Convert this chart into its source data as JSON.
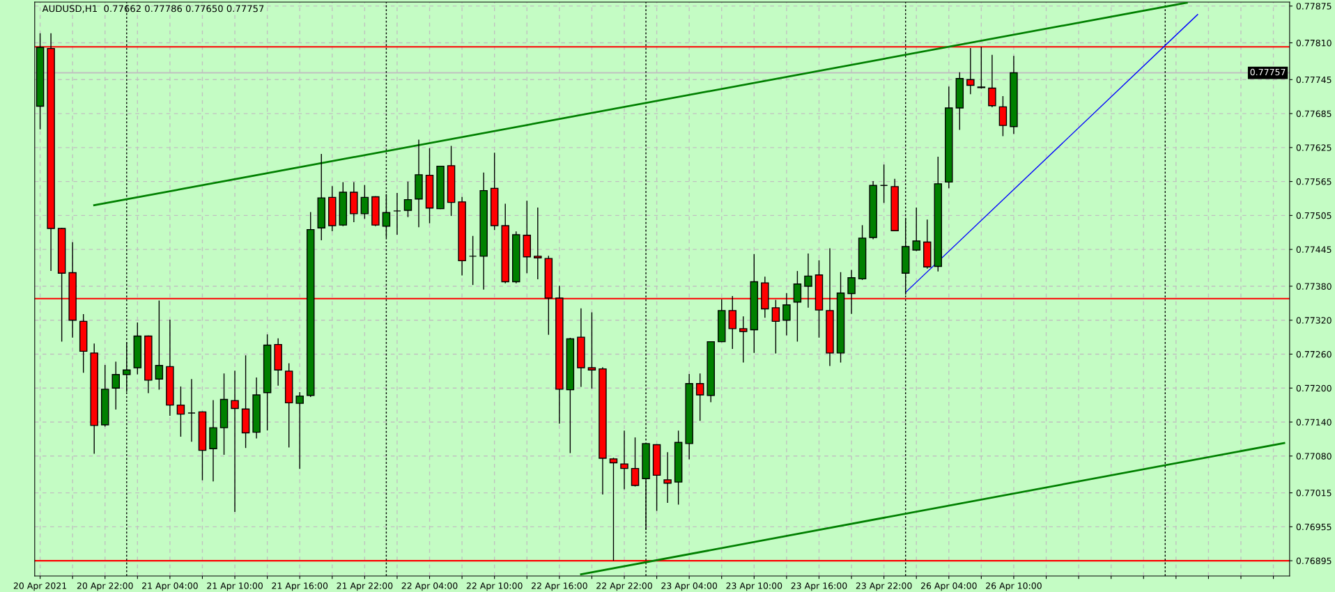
{
  "chart_data": {
    "type": "candlestick",
    "title": "AUDUSD,H1  0.77662 0.77786 0.77650 0.77757",
    "categories": [
      "20 Apr 2021",
      null,
      null,
      null,
      null,
      null,
      "20 Apr 22:00",
      null,
      null,
      null,
      null,
      null,
      "21 Apr 04:00",
      null,
      null,
      null,
      null,
      null,
      "21 Apr 10:00",
      null,
      null,
      null,
      null,
      null,
      "21 Apr 16:00",
      null,
      null,
      null,
      null,
      null,
      "21 Apr 22:00",
      null,
      null,
      null,
      null,
      null,
      "22 Apr 04:00",
      null,
      null,
      null,
      null,
      null,
      "22 Apr 10:00",
      null,
      null,
      null,
      null,
      null,
      "22 Apr 16:00",
      null,
      null,
      null,
      null,
      null,
      "22 Apr 22:00",
      null,
      null,
      null,
      null,
      null,
      "23 Apr 04:00",
      null,
      null,
      null,
      null,
      null,
      "23 Apr 10:00",
      null,
      null,
      null,
      null,
      null,
      "23 Apr 16:00",
      null,
      null,
      null,
      null,
      null,
      "23 Apr 22:00",
      null,
      null,
      null,
      null,
      null,
      "26 Apr 04:00",
      null,
      null,
      null,
      null,
      null,
      "26 Apr 10:00",
      null,
      null,
      null,
      null,
      null,
      null,
      null,
      null,
      null,
      null,
      null,
      null,
      null,
      null,
      null,
      null,
      null,
      null,
      null,
      null,
      null,
      null,
      null,
      null,
      null
    ],
    "ohlc": [
      [
        0.77698,
        0.77826,
        0.77658,
        0.77802
      ],
      [
        0.778,
        0.77826,
        0.77408,
        0.77482
      ],
      [
        0.77482,
        0.77482,
        0.77283,
        0.77403
      ],
      [
        0.77404,
        0.77457,
        0.7729,
        0.7732
      ],
      [
        0.77318,
        0.7733,
        0.77228,
        0.77265
      ],
      [
        0.77262,
        0.77278,
        0.77085,
        0.77134
      ],
      [
        0.77135,
        0.7724,
        0.77133,
        0.77198
      ],
      [
        0.772,
        0.77246,
        0.77163,
        0.77224
      ],
      [
        0.77224,
        0.7728,
        0.77194,
        0.77232
      ],
      [
        0.77236,
        0.77315,
        0.77225,
        0.77292
      ],
      [
        0.77292,
        0.77292,
        0.77192,
        0.77214
      ],
      [
        0.77216,
        0.77354,
        0.77198,
        0.7724
      ],
      [
        0.77238,
        0.7732,
        0.77152,
        0.7717
      ],
      [
        0.7717,
        0.77202,
        0.77115,
        0.77154
      ],
      [
        0.77156,
        0.77215,
        0.77106,
        0.77156
      ],
      [
        0.77158,
        0.77158,
        0.77038,
        0.7709
      ],
      [
        0.77093,
        0.77178,
        0.77036,
        0.7713
      ],
      [
        0.7713,
        0.77225,
        0.77083,
        0.7718
      ],
      [
        0.77178,
        0.7723,
        0.76982,
        0.77164
      ],
      [
        0.77163,
        0.77257,
        0.77095,
        0.77121
      ],
      [
        0.77122,
        0.77218,
        0.77112,
        0.77188
      ],
      [
        0.77192,
        0.77294,
        0.77126,
        0.77276
      ],
      [
        0.77277,
        0.77287,
        0.77205,
        0.77232
      ],
      [
        0.7723,
        0.77243,
        0.77096,
        0.77174
      ],
      [
        0.77173,
        0.77192,
        0.77058,
        0.77186
      ],
      [
        0.77187,
        0.7751,
        0.77185,
        0.7748
      ],
      [
        0.77483,
        0.77613,
        0.77462,
        0.77536
      ],
      [
        0.77537,
        0.77556,
        0.77478,
        0.77487
      ],
      [
        0.77488,
        0.77563,
        0.77487,
        0.77546
      ],
      [
        0.77546,
        0.77563,
        0.77494,
        0.77508
      ],
      [
        0.77508,
        0.77558,
        0.775,
        0.77537
      ],
      [
        0.77538,
        0.77538,
        0.77487,
        0.77488
      ],
      [
        0.77486,
        0.77542,
        0.77467,
        0.7751
      ],
      [
        0.77513,
        0.77544,
        0.77472,
        0.77513
      ],
      [
        0.77514,
        0.77564,
        0.77503,
        0.77533
      ],
      [
        0.77534,
        0.77638,
        0.77485,
        0.77577
      ],
      [
        0.77576,
        0.77623,
        0.77492,
        0.77518
      ],
      [
        0.77517,
        0.77592,
        0.77517,
        0.77592
      ],
      [
        0.77593,
        0.77627,
        0.77505,
        0.77528
      ],
      [
        0.77529,
        0.77537,
        0.774,
        0.77425
      ],
      [
        0.77433,
        0.77468,
        0.77383,
        0.77433
      ],
      [
        0.77433,
        0.7758,
        0.77375,
        0.77549
      ],
      [
        0.77553,
        0.77615,
        0.7748,
        0.77487
      ],
      [
        0.77487,
        0.77525,
        0.77386,
        0.77388
      ],
      [
        0.77388,
        0.77476,
        0.77386,
        0.77471
      ],
      [
        0.7747,
        0.7753,
        0.77404,
        0.77432
      ],
      [
        0.77433,
        0.77518,
        0.77393,
        0.7743
      ],
      [
        0.77429,
        0.77433,
        0.77295,
        0.77359
      ],
      [
        0.77359,
        0.7738,
        0.77138,
        0.77198
      ],
      [
        0.77197,
        0.77288,
        0.77086,
        0.77287
      ],
      [
        0.7729,
        0.7734,
        0.77203,
        0.77236
      ],
      [
        0.77236,
        0.77333,
        0.772,
        0.77232
      ],
      [
        0.77234,
        0.77236,
        0.77013,
        0.77076
      ],
      [
        0.77075,
        0.77076,
        0.76896,
        0.77068
      ],
      [
        0.77066,
        0.77124,
        0.77022,
        0.77058
      ],
      [
        0.77058,
        0.77112,
        0.77027,
        0.77028
      ],
      [
        0.7704,
        0.77102,
        0.7695,
        0.77102
      ],
      [
        0.771,
        0.771,
        0.76984,
        0.77046
      ],
      [
        0.77038,
        0.77086,
        0.76998,
        0.77032
      ],
      [
        0.77034,
        0.77124,
        0.76995,
        0.77104
      ],
      [
        0.77102,
        0.77224,
        0.77075,
        0.77208
      ],
      [
        0.77208,
        0.77225,
        0.77143,
        0.77188
      ],
      [
        0.77187,
        0.77282,
        0.77176,
        0.77282
      ],
      [
        0.77282,
        0.77356,
        0.77282,
        0.77337
      ],
      [
        0.77337,
        0.77362,
        0.7727,
        0.77305
      ],
      [
        0.77305,
        0.77326,
        0.77246,
        0.773
      ],
      [
        0.77303,
        0.77436,
        0.77263,
        0.77388
      ],
      [
        0.77386,
        0.77396,
        0.77325,
        0.7734
      ],
      [
        0.77342,
        0.77355,
        0.77262,
        0.77318
      ],
      [
        0.7732,
        0.77367,
        0.77294,
        0.77347
      ],
      [
        0.77352,
        0.77406,
        0.77283,
        0.77384
      ],
      [
        0.7738,
        0.77437,
        0.77343,
        0.77398
      ],
      [
        0.774,
        0.77425,
        0.7729,
        0.77338
      ],
      [
        0.77337,
        0.77446,
        0.7724,
        0.77262
      ],
      [
        0.77262,
        0.77404,
        0.77246,
        0.77368
      ],
      [
        0.77367,
        0.77408,
        0.77332,
        0.77395
      ],
      [
        0.77393,
        0.77487,
        0.77392,
        0.77465
      ],
      [
        0.77466,
        0.77565,
        0.77464,
        0.77558
      ],
      [
        0.77558,
        0.77594,
        0.77528,
        0.77558
      ],
      [
        0.77556,
        0.77569,
        0.77478,
        0.77478
      ],
      [
        0.77403,
        0.775,
        0.77366,
        0.7745
      ],
      [
        0.77444,
        0.77518,
        0.77443,
        0.7746
      ],
      [
        0.77458,
        0.77497,
        0.77412,
        0.77414
      ],
      [
        0.77415,
        0.77608,
        0.77407,
        0.77561
      ],
      [
        0.77564,
        0.77732,
        0.77554,
        0.77695
      ],
      [
        0.77695,
        0.77757,
        0.77657,
        0.77747
      ],
      [
        0.77745,
        0.778,
        0.7772,
        0.77735
      ],
      [
        0.77732,
        0.77802,
        0.7773,
        0.77731
      ],
      [
        0.7773,
        0.77788,
        0.77697,
        0.77699
      ],
      [
        0.77697,
        0.77715,
        0.77646,
        0.77664
      ],
      [
        0.77662,
        0.77786,
        0.7765,
        0.77757
      ],
      null,
      null,
      null,
      null,
      null,
      null,
      null,
      null,
      null,
      null,
      null,
      null,
      null,
      null,
      null,
      null,
      null,
      null,
      null,
      null,
      null,
      null,
      null,
      null,
      null
    ],
    "colors": [
      "#008000",
      "#ff0000",
      "#ff0000",
      "#ff0000",
      "#ff0000",
      "#ff0000",
      "#008000",
      "#008000",
      "#008000",
      "#008000",
      "#ff0000",
      "#008000",
      "#ff0000",
      "#ff0000",
      "#000000",
      "#ff0000",
      "#008000",
      "#008000",
      "#ff0000",
      "#ff0000",
      "#008000",
      "#008000",
      "#ff0000",
      "#ff0000",
      "#008000",
      "#008000",
      "#008000",
      "#ff0000",
      "#008000",
      "#ff0000",
      "#008000",
      "#ff0000",
      "#008000",
      "#000000",
      "#008000",
      "#008000",
      "#ff0000",
      "#008000",
      "#ff0000",
      "#ff0000",
      "#000000",
      "#008000",
      "#ff0000",
      "#ff0000",
      "#008000",
      "#ff0000",
      "#ff0000",
      "#ff0000",
      "#ff0000",
      "#008000",
      "#ff0000",
      "#ff0000",
      "#ff0000",
      "#ff0000",
      "#ff0000",
      "#ff0000",
      "#008000",
      "#ff0000",
      "#ff0000",
      "#008000",
      "#008000",
      "#ff0000",
      "#008000",
      "#008000",
      "#ff0000",
      "#ff0000",
      "#008000",
      "#ff0000",
      "#ff0000",
      "#008000",
      "#008000",
      "#008000",
      "#ff0000",
      "#ff0000",
      "#008000",
      "#008000",
      "#008000",
      "#008000",
      "#000000",
      "#ff0000",
      "#008000",
      "#008000",
      "#ff0000",
      "#008000",
      "#008000",
      "#008000",
      "#ff0000",
      "#ff0000",
      "#ff0000",
      "#ff0000",
      "#008000",
      null,
      null,
      null,
      null,
      null,
      null,
      null,
      null,
      null,
      null,
      null,
      null,
      null,
      null,
      null,
      null,
      null,
      null,
      null,
      null,
      null,
      null,
      null,
      null,
      null
    ],
    "series": [
      {
        "type": "line",
        "color": "#008000",
        "values": [
          null,
          null,
          null,
          null,
          null,
          0.77523,
          null,
          null,
          null,
          null,
          null,
          null,
          null,
          null,
          null,
          null,
          null,
          null,
          null,
          null,
          null,
          null,
          null,
          null,
          null,
          null,
          null,
          null,
          null,
          null,
          null,
          null,
          null,
          null,
          null,
          null,
          null,
          null,
          null,
          null,
          null,
          null,
          null,
          null,
          null,
          null,
          null,
          null,
          null,
          null,
          null,
          null,
          null,
          null,
          null,
          null,
          null,
          null,
          null,
          null,
          null,
          null,
          null,
          null,
          null,
          null,
          null,
          null,
          null,
          null,
          null,
          null,
          null,
          null,
          null,
          null,
          null,
          null,
          null,
          null,
          null,
          null,
          null,
          null,
          null,
          null,
          null,
          null,
          null,
          null,
          null,
          null,
          null,
          null,
          null,
          null,
          null,
          null,
          null,
          null,
          null,
          null,
          null,
          null,
          null,
          null,
          0.77881,
          null,
          null,
          null,
          null,
          null,
          null,
          null,
          null,
          null
        ]
      },
      {
        "type": "line",
        "color": "#008000",
        "values": [
          null,
          null,
          null,
          null,
          null,
          null,
          null,
          null,
          null,
          null,
          null,
          null,
          null,
          null,
          null,
          null,
          null,
          null,
          null,
          null,
          null,
          null,
          null,
          null,
          null,
          null,
          null,
          null,
          null,
          null,
          null,
          null,
          null,
          null,
          null,
          null,
          null,
          null,
          null,
          null,
          null,
          null,
          null,
          null,
          null,
          null,
          null,
          null,
          null,
          null,
          0.76871,
          null,
          null,
          null,
          null,
          null,
          null,
          null,
          null,
          null,
          null,
          null,
          null,
          null,
          null,
          null,
          null,
          null,
          null,
          null,
          null,
          null,
          null,
          null,
          null,
          null,
          null,
          null,
          null,
          null,
          null,
          null,
          null,
          null,
          null,
          null,
          null,
          null,
          null,
          null,
          null,
          null,
          null,
          null,
          null,
          null,
          null,
          null,
          null,
          null,
          null,
          null,
          null,
          null,
          null,
          null,
          null,
          null,
          null,
          null,
          null,
          null,
          null,
          null,
          null,
          0.77103
        ]
      },
      {
        "type": "line",
        "color": "#0000ff",
        "values": [
          null,
          null,
          null,
          null,
          null,
          null,
          null,
          null,
          null,
          null,
          null,
          null,
          null,
          null,
          null,
          null,
          null,
          null,
          null,
          null,
          null,
          null,
          null,
          null,
          null,
          null,
          null,
          null,
          null,
          null,
          null,
          null,
          null,
          null,
          null,
          null,
          null,
          null,
          null,
          null,
          null,
          null,
          null,
          null,
          null,
          null,
          null,
          null,
          null,
          null,
          null,
          null,
          null,
          null,
          null,
          null,
          null,
          null,
          null,
          null,
          null,
          null,
          null,
          null,
          null,
          null,
          null,
          null,
          null,
          null,
          null,
          null,
          null,
          null,
          null,
          null,
          null,
          null,
          null,
          null,
          0.77369,
          null,
          null,
          null,
          null,
          null,
          null,
          null,
          null,
          null,
          null,
          null,
          null,
          null,
          null,
          null,
          null,
          null,
          null,
          null,
          null,
          null,
          null,
          null,
          null,
          null,
          null,
          0.7786,
          null,
          null,
          null,
          null,
          null,
          null,
          null,
          null
        ]
      }
    ],
    "ref_lines": [
      {
        "axis": "y",
        "value": 0.77803,
        "color": "#ff0000",
        "line_style": "solid"
      },
      {
        "axis": "y",
        "value": 0.77358,
        "color": "#ff0000",
        "line_style": "solid"
      },
      {
        "axis": "y",
        "value": 0.76895,
        "color": "#ff0000",
        "line_style": "solid"
      },
      {
        "axis": "y",
        "value": 0.77757,
        "color": "#c0c0c0",
        "line_style": "solid",
        "label": "0.77757"
      }
    ],
    "ylim": [
      0.76868,
      0.77882
    ],
    "yticks": [
      0.76895,
      0.76955,
      0.77015,
      {
        "value": 0.7708,
        "label": "0.77080"
      },
      {
        "value": 0.7714,
        "label": "0.77140"
      },
      {
        "value": 0.772,
        "label": "0.77200"
      },
      {
        "value": 0.7726,
        "label": "0.77260"
      },
      {
        "value": 0.7732,
        "label": "0.77320"
      },
      {
        "value": 0.7738,
        "label": "0.77380"
      },
      0.77445,
      0.77505,
      0.77565,
      0.77625,
      0.77685,
      0.77745,
      {
        "value": 0.7781,
        "label": "0.77810"
      },
      0.77875
    ],
    "grid": true
  }
}
